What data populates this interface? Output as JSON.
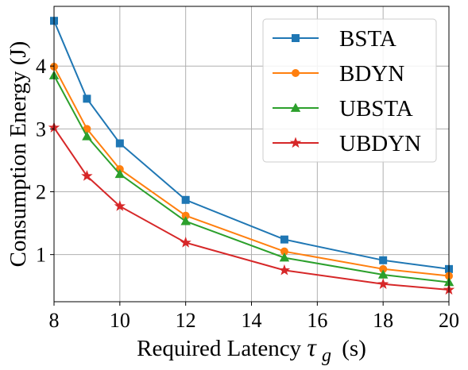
{
  "chart_data": {
    "type": "line",
    "xlabel": "Required Latency",
    "xlabel_symbol": "τ",
    "xlabel_subscript": "g",
    "xlabel_unit": "(s)",
    "ylabel": "Consumption Energy (J)",
    "xlim": [
      8,
      20
    ],
    "ylim": [
      0.25,
      4.95
    ],
    "xticks": [
      8,
      10,
      12,
      14,
      16,
      18,
      20
    ],
    "yticks": [
      1,
      2,
      3,
      4
    ],
    "grid": true,
    "legend_position": "top-right",
    "x": [
      8,
      9,
      10,
      12,
      15,
      18,
      20
    ],
    "series": [
      {
        "name": "BSTA",
        "color": "#1f77b4",
        "marker": "square",
        "values": [
          4.72,
          3.48,
          2.77,
          1.87,
          1.24,
          0.91,
          0.77
        ]
      },
      {
        "name": "BDYN",
        "color": "#ff7f0e",
        "marker": "circle",
        "values": [
          3.99,
          3.0,
          2.36,
          1.62,
          1.05,
          0.77,
          0.66
        ]
      },
      {
        "name": "UBSTA",
        "color": "#2ca02c",
        "marker": "triangle",
        "values": [
          3.85,
          2.88,
          2.28,
          1.53,
          0.95,
          0.68,
          0.56
        ]
      },
      {
        "name": "UBDYN",
        "color": "#d62728",
        "marker": "star",
        "values": [
          3.02,
          2.25,
          1.77,
          1.19,
          0.75,
          0.53,
          0.44
        ]
      }
    ]
  }
}
